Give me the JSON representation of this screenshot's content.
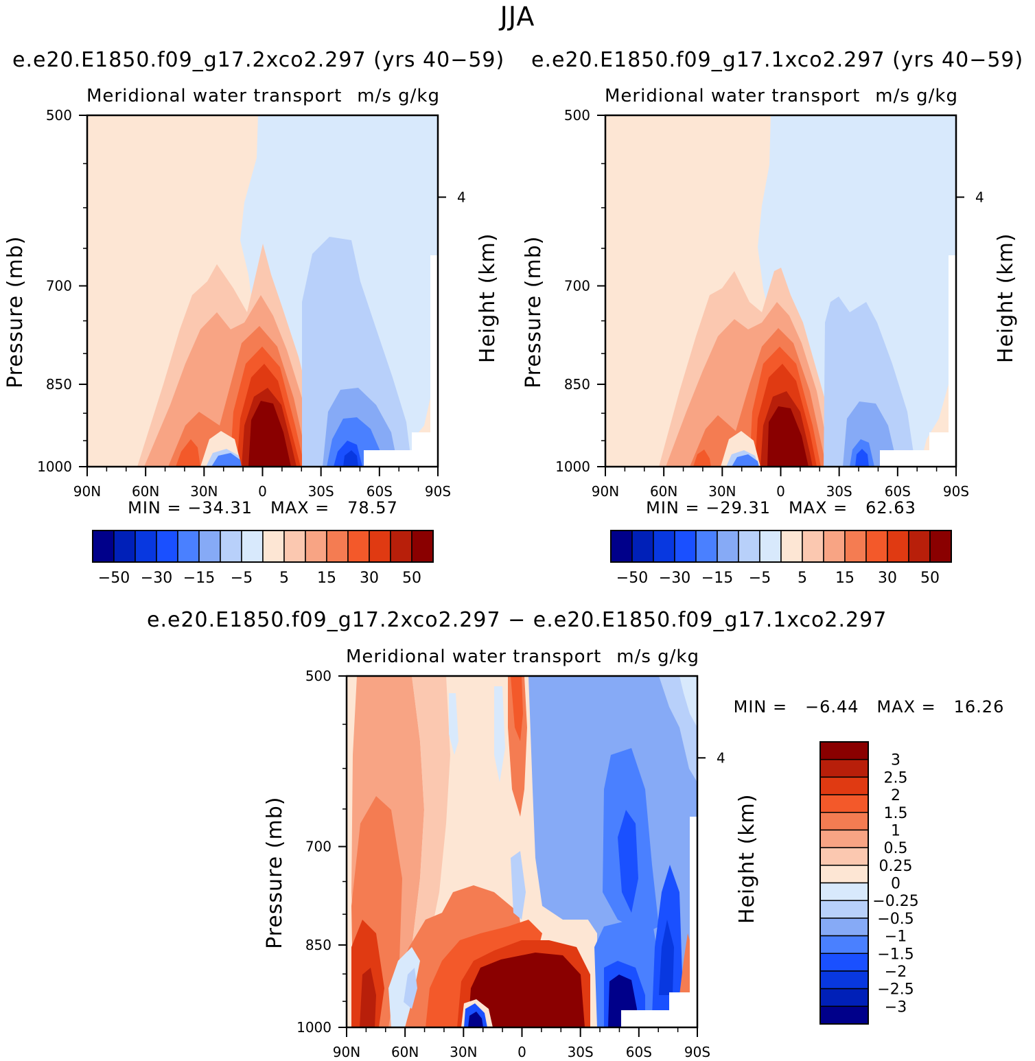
{
  "title": "JJA",
  "panels": [
    {
      "case_title": "e.e20.E1850.f09_g17.2xco2.297 (yrs 40−59)",
      "subtitle_left": "Meridional water transport",
      "subtitle_right": "m/s g/kg",
      "stats": "MIN = −34.31   MAX =   78.57"
    },
    {
      "case_title": "e.e20.E1850.f09_g17.1xco2.297 (yrs 40−59)",
      "subtitle_left": "Meridional water transport",
      "subtitle_right": "m/s g/kg",
      "stats": "MIN = −29.31   MAX =   62.63"
    },
    {
      "case_title": "e.e20.E1850.f09_g17.2xco2.297 − e.e20.E1850.f09_g17.1xco2.297",
      "subtitle_left": "Meridional water transport",
      "subtitle_right": "m/s g/kg",
      "stats": "MIN =   −6.44   MAX =   16.26"
    }
  ],
  "axes": {
    "ylabel": "Pressure (mb)",
    "ylabel_right": "Height (km)",
    "y_ticks": [
      "500",
      "700",
      "850",
      "1000"
    ],
    "y_right_ticks": [
      "4"
    ],
    "x_ticks": [
      "90N",
      "60N",
      "30N",
      "0",
      "30S",
      "60S",
      "90S"
    ]
  },
  "colorbar_main": {
    "colors": [
      "#00008a",
      "#0020b8",
      "#0838e0",
      "#1a50ff",
      "#4a80ff",
      "#86aaf6",
      "#b8d0fa",
      "#d8e9fc",
      "#fde6d4",
      "#fbc8b0",
      "#f8a484",
      "#f47c52",
      "#f3592a",
      "#e03a12",
      "#b81f0a",
      "#8a0000"
    ],
    "labels": [
      "−50",
      "−30",
      "−15",
      "−5",
      "5",
      "15",
      "30",
      "50"
    ]
  },
  "colorbar_diff": {
    "colors": [
      "#8a0000",
      "#b81f0a",
      "#e03a12",
      "#f3592a",
      "#f47c52",
      "#f8a484",
      "#fbc8b0",
      "#fde6d4",
      "#d8e9fc",
      "#b8d0fa",
      "#86aaf6",
      "#4a80ff",
      "#1a50ff",
      "#0838e0",
      "#0020b8",
      "#00008a"
    ],
    "labels": [
      "3",
      "2.5",
      "2",
      "1.5",
      "1",
      "0.5",
      "0.25",
      "0",
      "−0.25",
      "−0.5",
      "−1",
      "−1.5",
      "−2",
      "−2.5",
      "−3"
    ]
  },
  "chart_data": [
    {
      "type": "heatmap",
      "title": "e.e20.E1850.f09_g17.2xco2.297 (yrs 40−59)",
      "xlabel": "",
      "ylabel": "Pressure (mb)",
      "x_range": [
        "90N",
        "90S"
      ],
      "y_range": [
        500,
        1000
      ],
      "min": -34.31,
      "max": 78.57,
      "contour_levels": [
        -50,
        -40,
        -30,
        -20,
        -15,
        -10,
        -5,
        0,
        5,
        10,
        15,
        20,
        30,
        40,
        50
      ]
    },
    {
      "type": "heatmap",
      "title": "e.e20.E1850.f09_g17.1xco2.297 (yrs 40−59)",
      "xlabel": "",
      "ylabel": "Pressure (mb)",
      "x_range": [
        "90N",
        "90S"
      ],
      "y_range": [
        500,
        1000
      ],
      "min": -29.31,
      "max": 62.63,
      "contour_levels": [
        -50,
        -40,
        -30,
        -20,
        -15,
        -10,
        -5,
        0,
        5,
        10,
        15,
        20,
        30,
        40,
        50
      ]
    },
    {
      "type": "heatmap",
      "title": "e.e20.E1850.f09_g17.2xco2.297 − e.e20.E1850.f09_g17.1xco2.297",
      "xlabel": "",
      "ylabel": "Pressure (mb)",
      "x_range": [
        "90N",
        "90S"
      ],
      "y_range": [
        500,
        1000
      ],
      "min": -6.44,
      "max": 16.26,
      "contour_levels": [
        -3,
        -2.5,
        -2,
        -1.5,
        -1,
        -0.5,
        -0.25,
        0,
        0.25,
        0.5,
        1,
        1.5,
        2,
        2.5,
        3
      ]
    }
  ]
}
